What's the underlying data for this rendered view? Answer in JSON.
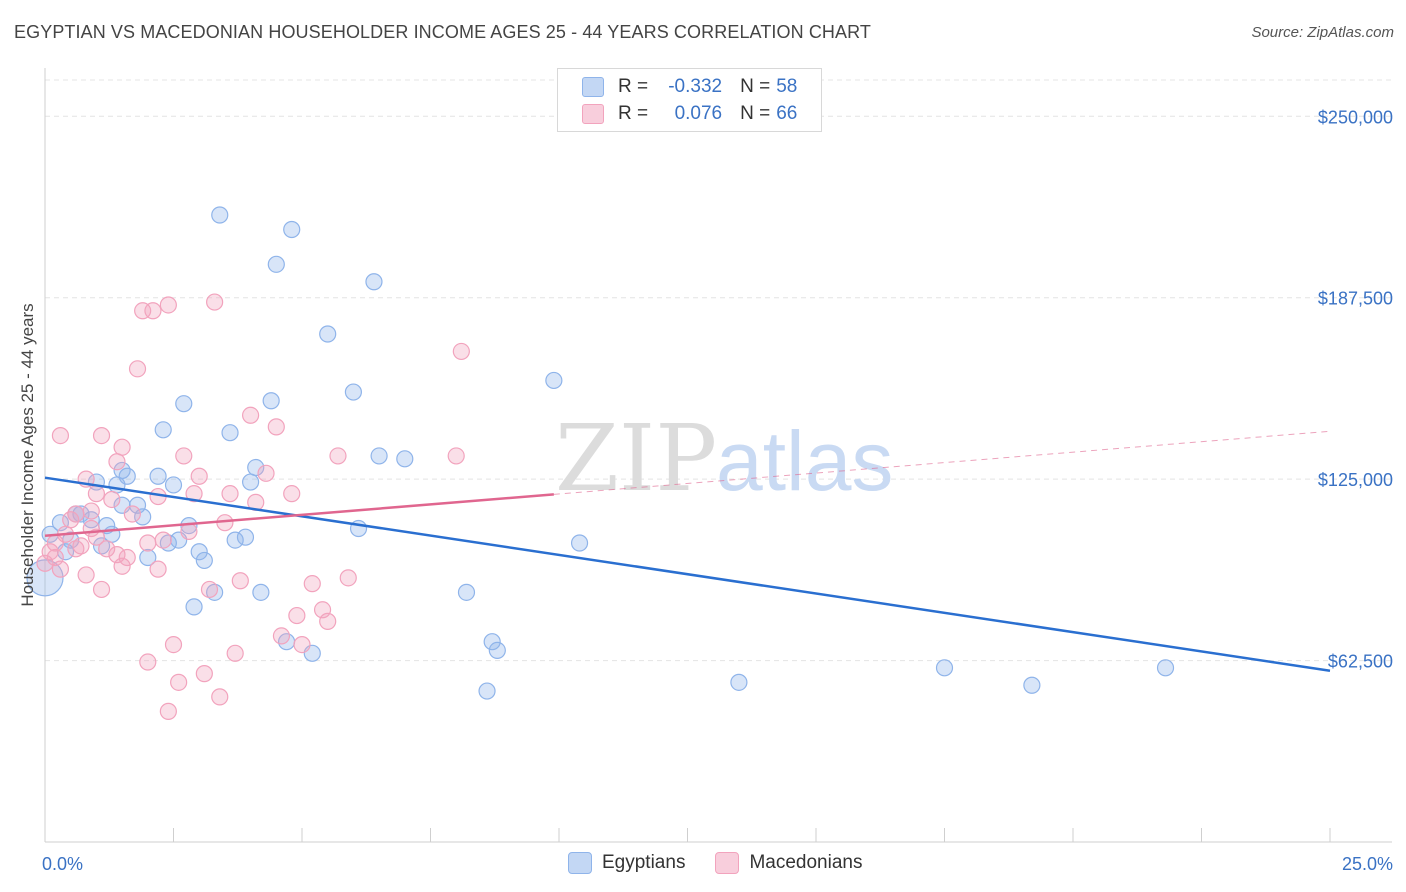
{
  "title": "EGYPTIAN VS MACEDONIAN HOUSEHOLDER INCOME AGES 25 - 44 YEARS CORRELATION CHART",
  "source": "Source: ZipAtlas.com",
  "watermark": {
    "zip": "ZIP",
    "atlas": "atlas"
  },
  "legend": {
    "r_label": "R =",
    "n_label": "N =",
    "rows": [
      {
        "name": "Egyptians",
        "r": "-0.332",
        "n": "58",
        "color": "#8fb4ea"
      },
      {
        "name": "Macedonians",
        "r": "0.076",
        "n": "66",
        "color": "#f2a3bd"
      }
    ]
  },
  "chart_data": {
    "type": "scatter",
    "title": "EGYPTIAN VS MACEDONIAN HOUSEHOLDER INCOME AGES 25 - 44 YEARS CORRELATION CHART",
    "xlabel": "",
    "ylabel": "Householder Income Ages 25 - 44 years",
    "xlim": [
      0,
      25
    ],
    "ylim": [
      0,
      262500
    ],
    "x_tick_labels": [
      "0.0%",
      "25.0%"
    ],
    "y_ticks": [
      62500,
      125000,
      187500,
      250000
    ],
    "y_tick_labels": [
      "$62,500",
      "$125,000",
      "$187,500",
      "$250,000"
    ],
    "grid": true,
    "legend_placement": "top-center",
    "series": [
      {
        "name": "Egyptians",
        "color": "#8fb4ea",
        "line_color": "#2a6fd0",
        "trend": {
          "x": [
            0,
            25
          ],
          "y": [
            125500,
            59000
          ],
          "dashed_from": null
        },
        "points": [
          [
            0.0,
            91000
          ],
          [
            0.3,
            110000
          ],
          [
            0.4,
            100000
          ],
          [
            0.5,
            104000
          ],
          [
            0.6,
            113000
          ],
          [
            0.7,
            113000
          ],
          [
            0.9,
            111000
          ],
          [
            1.0,
            124000
          ],
          [
            1.1,
            102000
          ],
          [
            1.2,
            109000
          ],
          [
            1.3,
            106000
          ],
          [
            1.4,
            123000
          ],
          [
            1.5,
            128000
          ],
          [
            1.5,
            116000
          ],
          [
            1.6,
            126000
          ],
          [
            1.8,
            116000
          ],
          [
            1.9,
            112000
          ],
          [
            2.0,
            98000
          ],
          [
            2.2,
            126000
          ],
          [
            2.3,
            142000
          ],
          [
            2.4,
            103000
          ],
          [
            2.5,
            123000
          ],
          [
            2.6,
            104000
          ],
          [
            2.7,
            151000
          ],
          [
            2.8,
            109000
          ],
          [
            2.9,
            81000
          ],
          [
            3.0,
            100000
          ],
          [
            3.1,
            97000
          ],
          [
            3.3,
            86000
          ],
          [
            3.4,
            216000
          ],
          [
            3.6,
            141000
          ],
          [
            3.7,
            104000
          ],
          [
            3.9,
            105000
          ],
          [
            4.0,
            124000
          ],
          [
            4.1,
            129000
          ],
          [
            4.2,
            86000
          ],
          [
            4.4,
            152000
          ],
          [
            4.5,
            199000
          ],
          [
            4.7,
            69000
          ],
          [
            4.8,
            211000
          ],
          [
            5.2,
            65000
          ],
          [
            5.5,
            175000
          ],
          [
            6.0,
            155000
          ],
          [
            6.1,
            108000
          ],
          [
            6.4,
            193000
          ],
          [
            6.5,
            133000
          ],
          [
            7.0,
            132000
          ],
          [
            8.2,
            86000
          ],
          [
            8.6,
            52000
          ],
          [
            8.7,
            69000
          ],
          [
            8.8,
            66000
          ],
          [
            9.9,
            159000
          ],
          [
            10.4,
            103000
          ],
          [
            13.5,
            55000
          ],
          [
            17.5,
            60000
          ],
          [
            19.2,
            54000
          ],
          [
            21.8,
            60000
          ],
          [
            0.1,
            106000
          ]
        ]
      },
      {
        "name": "Macedonians",
        "color": "#f2a3bd",
        "line_color": "#e0668f",
        "trend": {
          "x": [
            0,
            25
          ],
          "y": [
            105500,
            141500
          ],
          "dashed_from": 9.9
        },
        "points": [
          [
            0.0,
            96000
          ],
          [
            0.1,
            100000
          ],
          [
            0.2,
            103000
          ],
          [
            0.3,
            94000
          ],
          [
            0.4,
            106000
          ],
          [
            0.5,
            111000
          ],
          [
            0.6,
            113000
          ],
          [
            0.7,
            102000
          ],
          [
            0.8,
            92000
          ],
          [
            0.8,
            125000
          ],
          [
            0.9,
            108000
          ],
          [
            1.0,
            105000
          ],
          [
            1.0,
            120000
          ],
          [
            1.1,
            87000
          ],
          [
            1.2,
            101000
          ],
          [
            1.3,
            118000
          ],
          [
            1.4,
            131000
          ],
          [
            1.4,
            99000
          ],
          [
            1.5,
            136000
          ],
          [
            1.6,
            98000
          ],
          [
            1.7,
            113000
          ],
          [
            1.8,
            163000
          ],
          [
            1.9,
            183000
          ],
          [
            2.0,
            62000
          ],
          [
            2.0,
            103000
          ],
          [
            2.1,
            183000
          ],
          [
            2.2,
            94000
          ],
          [
            2.3,
            104000
          ],
          [
            2.4,
            45000
          ],
          [
            2.4,
            185000
          ],
          [
            2.5,
            68000
          ],
          [
            2.6,
            55000
          ],
          [
            2.7,
            133000
          ],
          [
            2.8,
            107000
          ],
          [
            2.9,
            120000
          ],
          [
            3.0,
            126000
          ],
          [
            3.1,
            58000
          ],
          [
            3.2,
            87000
          ],
          [
            3.3,
            186000
          ],
          [
            3.4,
            50000
          ],
          [
            3.5,
            110000
          ],
          [
            3.6,
            120000
          ],
          [
            3.7,
            65000
          ],
          [
            3.8,
            90000
          ],
          [
            4.0,
            147000
          ],
          [
            4.1,
            117000
          ],
          [
            4.3,
            127000
          ],
          [
            4.5,
            143000
          ],
          [
            4.6,
            71000
          ],
          [
            4.8,
            120000
          ],
          [
            4.9,
            78000
          ],
          [
            5.0,
            68000
          ],
          [
            5.2,
            89000
          ],
          [
            5.4,
            80000
          ],
          [
            5.5,
            76000
          ],
          [
            5.7,
            133000
          ],
          [
            5.9,
            91000
          ],
          [
            8.0,
            133000
          ],
          [
            8.1,
            169000
          ],
          [
            0.3,
            140000
          ],
          [
            0.6,
            101000
          ],
          [
            1.1,
            140000
          ],
          [
            1.5,
            95000
          ],
          [
            2.2,
            119000
          ],
          [
            0.2,
            98000
          ],
          [
            0.9,
            114000
          ]
        ]
      }
    ]
  }
}
